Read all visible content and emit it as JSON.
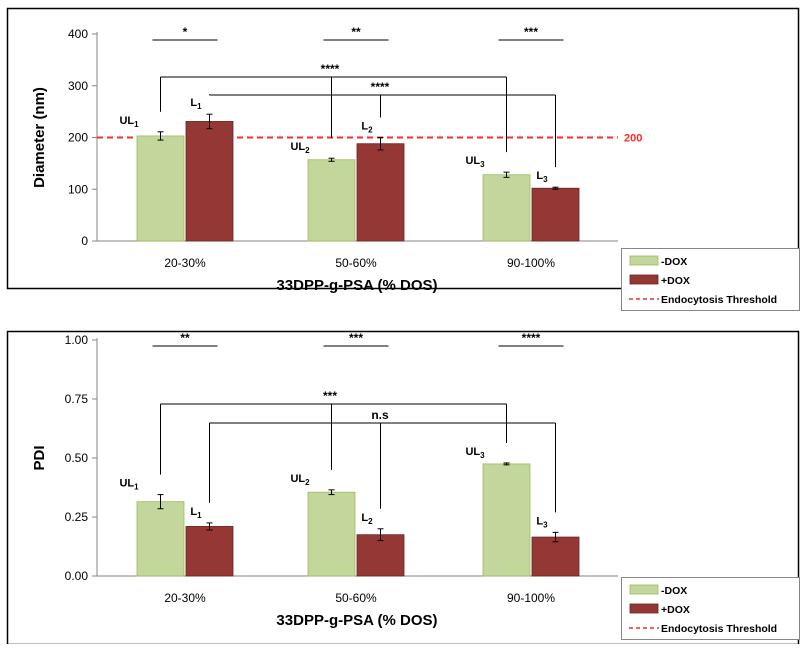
{
  "legend": {
    "items": [
      {
        "label": "-DOX",
        "kind": "bar",
        "color": "#c3d69b"
      },
      {
        "label": "+DOX",
        "kind": "bar",
        "color": "#953735"
      },
      {
        "label": "Endocytosis Threshold",
        "kind": "dashed",
        "color": "#ff2a2a"
      }
    ]
  },
  "colors": {
    "minus_dox": "#c3d69b",
    "plus_dox": "#953735",
    "threshold": "#ff2a2a",
    "frame": "#000000"
  },
  "chart_data": [
    {
      "type": "bar",
      "categories": [
        "20-30%",
        "50-60%",
        "90-100%"
      ],
      "xlabel": "33DPP-g-PSA (% DOS)",
      "ylabel": "Diameter (nm)",
      "ylim": [
        0,
        400
      ],
      "yticks": [
        "0",
        "100",
        "200",
        "300",
        "400"
      ],
      "series": [
        {
          "name": "-DOX",
          "values": [
            203,
            157,
            128
          ],
          "errors": [
            8,
            3,
            5
          ],
          "labels": [
            [
              "UL",
              "1"
            ],
            [
              "UL",
              "2"
            ],
            [
              "UL",
              "3"
            ]
          ]
        },
        {
          "name": "+DOX",
          "values": [
            231,
            188,
            102
          ],
          "errors": [
            14,
            12,
            2
          ],
          "labels": [
            [
              "L",
              "1"
            ],
            [
              "L",
              "2"
            ],
            [
              "L",
              "3"
            ]
          ]
        }
      ],
      "threshold": {
        "value": 200,
        "label": "200",
        "name": "Endocytosis Threshold"
      },
      "significance": [
        {
          "type": "pair",
          "category": 0,
          "label": "*"
        },
        {
          "type": "pair",
          "category": 1,
          "label": "**"
        },
        {
          "type": "pair",
          "category": 2,
          "label": "***"
        },
        {
          "type": "bracket",
          "series": 0,
          "label": "****"
        },
        {
          "type": "bracket",
          "series": 1,
          "label": "****"
        }
      ],
      "legend": "bottom-right",
      "grid": false
    },
    {
      "type": "bar",
      "categories": [
        "20-30%",
        "50-60%",
        "90-100%"
      ],
      "xlabel": "33DPP-g-PSA (% DOS)",
      "ylabel": "PDI",
      "ylim": [
        0,
        1
      ],
      "yticks": [
        "0.00",
        "0.25",
        "0.50",
        "0.75",
        "1.00"
      ],
      "series": [
        {
          "name": "-DOX",
          "values": [
            0.315,
            0.355,
            0.475
          ],
          "errors": [
            0.03,
            0.01,
            0.004
          ],
          "labels": [
            [
              "UL",
              "1"
            ],
            [
              "UL",
              "2"
            ],
            [
              "UL",
              "3"
            ]
          ]
        },
        {
          "name": "+DOX",
          "values": [
            0.21,
            0.175,
            0.165
          ],
          "errors": [
            0.015,
            0.025,
            0.02
          ],
          "labels": [
            [
              "L",
              "1"
            ],
            [
              "L",
              "2"
            ],
            [
              "L",
              "3"
            ]
          ]
        }
      ],
      "significance": [
        {
          "type": "pair",
          "category": 0,
          "label": "**"
        },
        {
          "type": "pair",
          "category": 1,
          "label": "***"
        },
        {
          "type": "pair",
          "category": 2,
          "label": "****"
        },
        {
          "type": "bracket",
          "series": 0,
          "label": "***"
        },
        {
          "type": "bracket",
          "series": 1,
          "label": "n.s"
        }
      ],
      "legend": "bottom-right",
      "grid": false
    }
  ]
}
